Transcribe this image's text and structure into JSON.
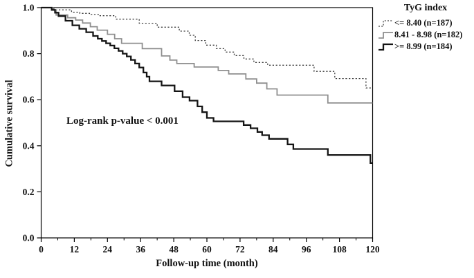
{
  "figure": {
    "annotation_text": "Log-rank p-value < 0.001"
  },
  "chart_data": {
    "type": "line",
    "subtype": "kaplan-meier-step-survival",
    "title": "",
    "xlabel": "Follow-up time (month)",
    "ylabel": "Cumulative survival",
    "xlim": [
      0,
      120
    ],
    "ylim": [
      0.0,
      1.0
    ],
    "x_ticks": [
      0,
      12,
      24,
      36,
      48,
      60,
      72,
      84,
      96,
      108,
      120
    ],
    "x_minor_ticks": [
      6,
      18,
      30,
      42,
      54,
      66,
      78,
      90,
      102,
      114
    ],
    "y_ticks": [
      {
        "value": 0.0,
        "label": "0.0"
      },
      {
        "value": 0.2,
        "label": "0.2"
      },
      {
        "value": 0.4,
        "label": "0.4"
      },
      {
        "value": 0.6,
        "label": "0.6"
      },
      {
        "value": 0.8,
        "label": "0.8"
      },
      {
        "value": 1.0,
        "label": "1.0"
      }
    ],
    "grid": false,
    "legend_title": "TyG index",
    "legend_position": "outside-top-right",
    "annotation": {
      "text": "Log-rank p-value < 0.001",
      "x_month": 28,
      "y_survival": 0.5
    },
    "series": [
      {
        "name": "<= 8.40 (n=187)",
        "color": "#3f3f3f",
        "style": "dotted",
        "width": 1.3,
        "points": [
          [
            0,
            1.0
          ],
          [
            4.6,
            0.99
          ],
          [
            11,
            0.98
          ],
          [
            14,
            0.975
          ],
          [
            17.5,
            0.97
          ],
          [
            21,
            0.965
          ],
          [
            27,
            0.95
          ],
          [
            35.5,
            0.932
          ],
          [
            42,
            0.915
          ],
          [
            50,
            0.898
          ],
          [
            53.6,
            0.88
          ],
          [
            55.8,
            0.857
          ],
          [
            59.6,
            0.837
          ],
          [
            63.4,
            0.822
          ],
          [
            66.6,
            0.807
          ],
          [
            69.9,
            0.792
          ],
          [
            73.4,
            0.777
          ],
          [
            77,
            0.762
          ],
          [
            82,
            0.75
          ],
          [
            98.8,
            0.723
          ],
          [
            106.3,
            0.692
          ],
          [
            117.6,
            0.651
          ],
          [
            120,
            0.651
          ]
        ]
      },
      {
        "name": "8.41 - 8.98 (n=182)",
        "color": "#8f8f8f",
        "style": "solid",
        "width": 1.8,
        "points": [
          [
            0,
            1.0
          ],
          [
            4.2,
            0.99
          ],
          [
            5.4,
            0.968
          ],
          [
            9.6,
            0.956
          ],
          [
            12.5,
            0.946
          ],
          [
            15,
            0.933
          ],
          [
            17.8,
            0.917
          ],
          [
            20.3,
            0.902
          ],
          [
            24,
            0.884
          ],
          [
            26.6,
            0.865
          ],
          [
            29.1,
            0.845
          ],
          [
            36.6,
            0.822
          ],
          [
            43.6,
            0.79
          ],
          [
            46.6,
            0.772
          ],
          [
            49.1,
            0.757
          ],
          [
            55.4,
            0.742
          ],
          [
            64.1,
            0.727
          ],
          [
            67.9,
            0.712
          ],
          [
            74.1,
            0.69
          ],
          [
            78,
            0.672
          ],
          [
            81.7,
            0.647
          ],
          [
            85.4,
            0.62
          ],
          [
            103.8,
            0.586
          ],
          [
            120,
            0.586
          ]
        ]
      },
      {
        "name": ">= 8.99 (n=184)",
        "color": "#141414",
        "style": "solid",
        "width": 2.3,
        "points": [
          [
            0,
            1.0
          ],
          [
            3.8,
            0.99
          ],
          [
            5,
            0.978
          ],
          [
            6.3,
            0.963
          ],
          [
            8.8,
            0.943
          ],
          [
            11.3,
            0.923
          ],
          [
            13.8,
            0.908
          ],
          [
            16.3,
            0.893
          ],
          [
            18.8,
            0.877
          ],
          [
            20.5,
            0.865
          ],
          [
            22,
            0.855
          ],
          [
            23.5,
            0.845
          ],
          [
            25,
            0.835
          ],
          [
            26.5,
            0.823
          ],
          [
            28,
            0.812
          ],
          [
            29.5,
            0.8
          ],
          [
            31,
            0.788
          ],
          [
            32.5,
            0.773
          ],
          [
            34,
            0.757
          ],
          [
            35.5,
            0.74
          ],
          [
            37,
            0.718
          ],
          [
            38.2,
            0.7
          ],
          [
            39.2,
            0.68
          ],
          [
            43.6,
            0.662
          ],
          [
            48.3,
            0.637
          ],
          [
            51.2,
            0.611
          ],
          [
            53.7,
            0.596
          ],
          [
            56.6,
            0.571
          ],
          [
            58.3,
            0.546
          ],
          [
            60,
            0.521
          ],
          [
            62.4,
            0.506
          ],
          [
            73.3,
            0.49
          ],
          [
            75.8,
            0.476
          ],
          [
            78.3,
            0.46
          ],
          [
            80,
            0.446
          ],
          [
            82.5,
            0.43
          ],
          [
            89.2,
            0.406
          ],
          [
            91.3,
            0.386
          ],
          [
            103.8,
            0.36
          ],
          [
            119.2,
            0.325
          ],
          [
            120,
            0.325
          ]
        ]
      }
    ]
  }
}
